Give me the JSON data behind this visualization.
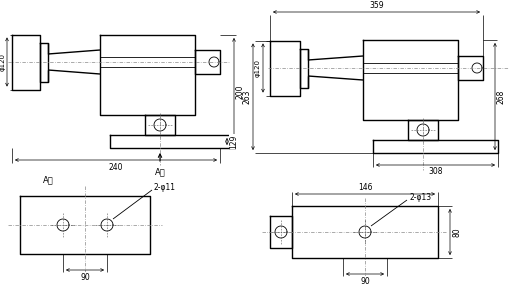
{
  "bg_color": "#ffffff",
  "line_color": "#000000",
  "dash_color": "#888888",
  "figsize": [
    5.25,
    2.93
  ],
  "dpi": 100,
  "annotations": {
    "v1_phi120": "φ120",
    "v1_240": "240",
    "v1_200": "200",
    "v1_129": "129",
    "v1_arrow": "A向",
    "v2_359": "359",
    "v2_phi120": "φ120",
    "v2_263": "263",
    "v2_268": "268",
    "v2_308": "308",
    "v3_label": "A向",
    "v3_phi11": "2-φ11",
    "v3_90": "90",
    "v4_146": "146",
    "v4_phi13": "2-φ13",
    "v4_80": "80",
    "v4_90": "90"
  }
}
